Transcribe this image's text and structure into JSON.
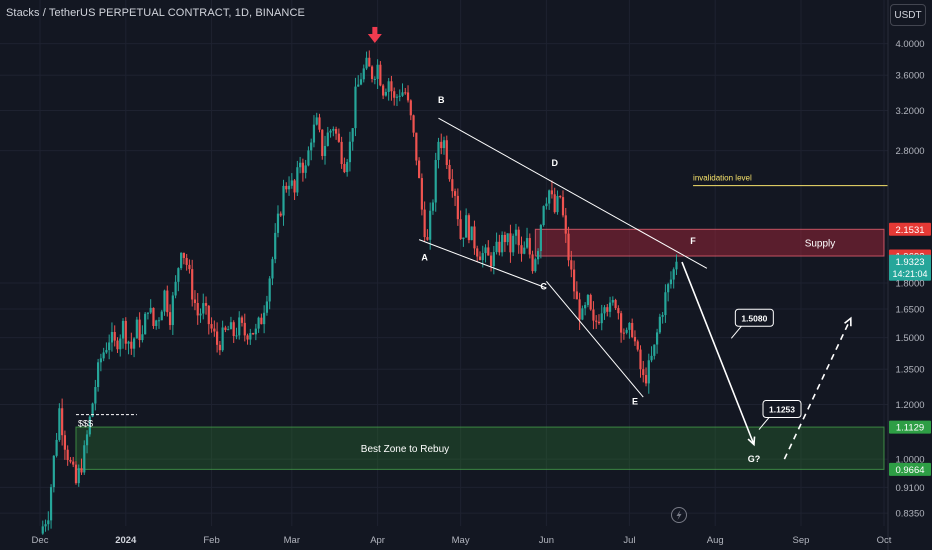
{
  "header": {
    "title": "Stacks / TetherUS PERPETUAL CONTRACT, 1D, BINANCE",
    "currency": "USDT"
  },
  "colors": {
    "background": "#131722",
    "up": "#26a69a",
    "down": "#ef5350",
    "supply_zone": "#b2283b",
    "rebuy_zone": "#2e7d32",
    "invalidation": "#f7e36b",
    "arrow": "#ffffff"
  },
  "chart_data": {
    "type": "candlestick",
    "y_scale": "log",
    "ylim": [
      0.8,
      4.3
    ],
    "xlim": [
      "2023-12-01",
      "2024-10-01"
    ],
    "y_ticks": [
      "4.0000",
      "3.6000",
      "3.2000",
      "2.8000",
      "2.1531",
      "1.9692",
      "1.9323",
      "1.8000",
      "1.6500",
      "1.5000",
      "1.3500",
      "1.2000",
      "1.1129",
      "1.0000",
      "0.9664",
      "0.9100",
      "0.8350"
    ],
    "x_ticks": [
      {
        "label": "Dec",
        "date": "2023-12-01"
      },
      {
        "label": "2024",
        "date": "2024-01-01"
      },
      {
        "label": "Feb",
        "date": "2024-02-01"
      },
      {
        "label": "Mar",
        "date": "2024-03-01"
      },
      {
        "label": "Apr",
        "date": "2024-04-01"
      },
      {
        "label": "May",
        "date": "2024-05-01"
      },
      {
        "label": "Jun",
        "date": "2024-06-01"
      },
      {
        "label": "Jul",
        "date": "2024-07-01"
      },
      {
        "label": "Aug",
        "date": "2024-08-01"
      },
      {
        "label": "Sep",
        "date": "2024-09-01"
      },
      {
        "label": "Oct",
        "date": "2024-10-01"
      }
    ],
    "price_path": [
      {
        "date": "2023-12-01",
        "price": 0.78
      },
      {
        "date": "2023-12-04",
        "price": 0.84
      },
      {
        "date": "2023-12-06",
        "price": 1.0
      },
      {
        "date": "2023-12-08",
        "price": 1.18
      },
      {
        "date": "2023-12-10",
        "price": 1.06
      },
      {
        "date": "2023-12-12",
        "price": 0.98
      },
      {
        "date": "2023-12-14",
        "price": 0.92
      },
      {
        "date": "2023-12-17",
        "price": 1.02
      },
      {
        "date": "2023-12-19",
        "price": 1.14
      },
      {
        "date": "2023-12-21",
        "price": 1.28
      },
      {
        "date": "2023-12-23",
        "price": 1.4
      },
      {
        "date": "2023-12-26",
        "price": 1.5
      },
      {
        "date": "2023-12-28",
        "price": 1.46
      },
      {
        "date": "2023-12-31",
        "price": 1.56
      },
      {
        "date": "2024-01-03",
        "price": 1.45
      },
      {
        "date": "2024-01-05",
        "price": 1.55
      },
      {
        "date": "2024-01-07",
        "price": 1.5
      },
      {
        "date": "2024-01-09",
        "price": 1.68
      },
      {
        "date": "2024-01-11",
        "price": 1.56
      },
      {
        "date": "2024-01-13",
        "price": 1.62
      },
      {
        "date": "2024-01-15",
        "price": 1.74
      },
      {
        "date": "2024-01-17",
        "price": 1.62
      },
      {
        "date": "2024-01-19",
        "price": 1.78
      },
      {
        "date": "2024-01-21",
        "price": 2.05
      },
      {
        "date": "2024-01-23",
        "price": 1.92
      },
      {
        "date": "2024-01-25",
        "price": 1.75
      },
      {
        "date": "2024-01-27",
        "price": 1.62
      },
      {
        "date": "2024-01-29",
        "price": 1.65
      },
      {
        "date": "2024-02-01",
        "price": 1.54
      },
      {
        "date": "2024-02-03",
        "price": 1.47
      },
      {
        "date": "2024-02-05",
        "price": 1.5
      },
      {
        "date": "2024-02-07",
        "price": 1.54
      },
      {
        "date": "2024-02-09",
        "price": 1.52
      },
      {
        "date": "2024-02-11",
        "price": 1.56
      },
      {
        "date": "2024-02-13",
        "price": 1.52
      },
      {
        "date": "2024-02-15",
        "price": 1.55
      },
      {
        "date": "2024-02-17",
        "price": 1.52
      },
      {
        "date": "2024-02-19",
        "price": 1.6
      },
      {
        "date": "2024-02-21",
        "price": 1.75
      },
      {
        "date": "2024-02-23",
        "price": 1.95
      },
      {
        "date": "2024-02-25",
        "price": 2.2
      },
      {
        "date": "2024-02-27",
        "price": 2.45
      },
      {
        "date": "2024-02-29",
        "price": 2.55
      },
      {
        "date": "2024-03-02",
        "price": 2.42
      },
      {
        "date": "2024-03-04",
        "price": 2.72
      },
      {
        "date": "2024-03-06",
        "price": 2.62
      },
      {
        "date": "2024-03-08",
        "price": 2.95
      },
      {
        "date": "2024-03-10",
        "price": 3.05
      },
      {
        "date": "2024-03-12",
        "price": 2.8
      },
      {
        "date": "2024-03-14",
        "price": 2.95
      },
      {
        "date": "2024-03-16",
        "price": 3.05
      },
      {
        "date": "2024-03-18",
        "price": 2.85
      },
      {
        "date": "2024-03-20",
        "price": 2.7
      },
      {
        "date": "2024-03-22",
        "price": 2.85
      },
      {
        "date": "2024-03-24",
        "price": 3.35
      },
      {
        "date": "2024-03-26",
        "price": 3.6
      },
      {
        "date": "2024-03-28",
        "price": 3.7
      },
      {
        "date": "2024-03-30",
        "price": 3.62
      },
      {
        "date": "2024-04-01",
        "price": 3.72
      },
      {
        "date": "2024-04-03",
        "price": 3.45
      },
      {
        "date": "2024-04-05",
        "price": 3.55
      },
      {
        "date": "2024-04-07",
        "price": 3.3
      },
      {
        "date": "2024-04-09",
        "price": 3.42
      },
      {
        "date": "2024-04-11",
        "price": 3.4
      },
      {
        "date": "2024-04-13",
        "price": 3.1
      },
      {
        "date": "2024-04-15",
        "price": 2.75
      },
      {
        "date": "2024-04-17",
        "price": 2.3
      },
      {
        "date": "2024-04-19",
        "price": 2.05
      },
      {
        "date": "2024-04-21",
        "price": 2.4
      },
      {
        "date": "2024-04-23",
        "price": 2.9
      },
      {
        "date": "2024-04-25",
        "price": 2.88
      },
      {
        "date": "2024-04-27",
        "price": 2.62
      },
      {
        "date": "2024-04-29",
        "price": 2.45
      },
      {
        "date": "2024-05-01",
        "price": 2.1
      },
      {
        "date": "2024-05-03",
        "price": 2.2
      },
      {
        "date": "2024-05-05",
        "price": 2.1
      },
      {
        "date": "2024-05-07",
        "price": 2.02
      },
      {
        "date": "2024-05-09",
        "price": 1.98
      },
      {
        "date": "2024-05-11",
        "price": 1.95
      },
      {
        "date": "2024-05-13",
        "price": 1.96
      },
      {
        "date": "2024-05-15",
        "price": 2.04
      },
      {
        "date": "2024-05-17",
        "price": 2.1
      },
      {
        "date": "2024-05-19",
        "price": 2.02
      },
      {
        "date": "2024-05-21",
        "price": 2.12
      },
      {
        "date": "2024-05-23",
        "price": 1.95
      },
      {
        "date": "2024-05-25",
        "price": 2.05
      },
      {
        "date": "2024-05-27",
        "price": 1.92
      },
      {
        "date": "2024-05-29",
        "price": 2.05
      },
      {
        "date": "2024-05-31",
        "price": 2.38
      },
      {
        "date": "2024-06-02",
        "price": 2.45
      },
      {
        "date": "2024-06-04",
        "price": 2.28
      },
      {
        "date": "2024-06-06",
        "price": 2.4
      },
      {
        "date": "2024-06-08",
        "price": 2.08
      },
      {
        "date": "2024-06-10",
        "price": 1.85
      },
      {
        "date": "2024-06-12",
        "price": 1.68
      },
      {
        "date": "2024-06-14",
        "price": 1.6
      },
      {
        "date": "2024-06-16",
        "price": 1.68
      },
      {
        "date": "2024-06-18",
        "price": 1.55
      },
      {
        "date": "2024-06-20",
        "price": 1.62
      },
      {
        "date": "2024-06-22",
        "price": 1.72
      },
      {
        "date": "2024-06-24",
        "price": 1.64
      },
      {
        "date": "2024-06-26",
        "price": 1.7
      },
      {
        "date": "2024-06-28",
        "price": 1.58
      },
      {
        "date": "2024-06-30",
        "price": 1.5
      },
      {
        "date": "2024-07-02",
        "price": 1.55
      },
      {
        "date": "2024-07-04",
        "price": 1.4
      },
      {
        "date": "2024-07-06",
        "price": 1.3
      },
      {
        "date": "2024-07-08",
        "price": 1.35
      },
      {
        "date": "2024-07-10",
        "price": 1.44
      },
      {
        "date": "2024-07-12",
        "price": 1.6
      },
      {
        "date": "2024-07-14",
        "price": 1.72
      },
      {
        "date": "2024-07-16",
        "price": 1.82
      },
      {
        "date": "2024-07-18",
        "price": 1.9323
      }
    ],
    "annotations": {
      "zones": [
        {
          "name": "supply-zone",
          "label": "Supply",
          "from_date": "2024-05-28",
          "to_date": "2024-10-01",
          "low": 1.9692,
          "high": 2.1531,
          "low_tag": "1.9692",
          "high_tag": "2.1531",
          "color": "#b2283b"
        },
        {
          "name": "rebuy-zone",
          "label": "Best Zone to Rebuy",
          "from_date": "2023-12-14",
          "to_date": "2024-10-01",
          "low": 0.9664,
          "high": 1.1129,
          "low_tag": "0.9664",
          "high_tag": "1.1129",
          "color": "#2e7d32"
        }
      ],
      "invalidation": {
        "label": "invalidation level",
        "value": 2.491,
        "tag": "2.4910",
        "from_date": "2024-07-24",
        "to_date": "2024-10-01"
      },
      "current_price": {
        "value": 1.9323,
        "tag": "1.9323",
        "countdown": "14:21:04"
      },
      "liquidity_line": {
        "label": "$$$",
        "value": 1.16,
        "from_date": "2023-12-14",
        "to_date": "2024-01-05"
      },
      "wave_labels": [
        {
          "text": "A",
          "date": "2024-04-18",
          "price": 1.94
        },
        {
          "text": "B",
          "date": "2024-04-24",
          "price": 3.28
        },
        {
          "text": "C",
          "date": "2024-05-31",
          "price": 1.76
        },
        {
          "text": "D",
          "date": "2024-06-04",
          "price": 2.66
        },
        {
          "text": "E",
          "date": "2024-07-03",
          "price": 1.2
        },
        {
          "text": "F",
          "date": "2024-07-24",
          "price": 2.05
        },
        {
          "text": "G?",
          "date": "2024-08-15",
          "price": 0.99
        }
      ],
      "lines": [
        {
          "from": {
            "date": "2024-04-23",
            "price": 3.12
          },
          "to": {
            "date": "2024-07-29",
            "price": 1.89
          }
        },
        {
          "from": {
            "date": "2024-04-16",
            "price": 2.08
          },
          "to": {
            "date": "2024-06-01",
            "price": 1.77
          }
        },
        {
          "from": {
            "date": "2024-06-01",
            "price": 1.81
          },
          "to": {
            "date": "2024-07-06",
            "price": 1.23
          }
        }
      ],
      "arrows": [
        {
          "name": "projection-arrow",
          "style": "solid",
          "from": {
            "date": "2024-07-20",
            "price": 1.93
          },
          "to": {
            "date": "2024-08-15",
            "price": 1.05
          }
        },
        {
          "name": "rebound-arrow",
          "style": "dashed",
          "from": {
            "date": "2024-08-26",
            "price": 1.0
          },
          "to": {
            "date": "2024-09-19",
            "price": 1.6
          }
        }
      ],
      "callouts": [
        {
          "text": "1.5080",
          "date": "2024-08-09",
          "price": 1.6
        },
        {
          "text": "1.1253",
          "date": "2024-08-19",
          "price": 1.18
        }
      ],
      "top_marker": {
        "date": "2024-03-31",
        "price": 4.05
      }
    }
  }
}
